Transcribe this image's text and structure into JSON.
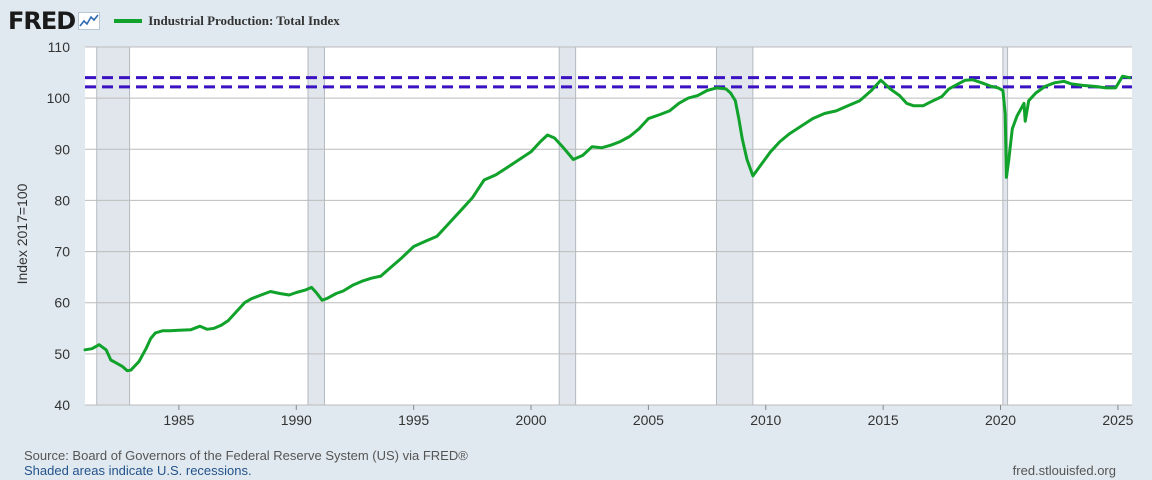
{
  "header": {
    "logo_text": "FRED",
    "logo_icon": "chart-line-icon",
    "series_title": "Industrial Production: Total Index",
    "series_color": "#10a22a"
  },
  "footer": {
    "source": "Source: Board of Governors of the Federal Reserve System (US) via FRED®",
    "recession_note": "Shaded areas indicate U.S. recessions.",
    "url": "fred.stlouisfed.org"
  },
  "colors": {
    "background": "#e1e9f0",
    "plot_area": "#ffffff",
    "recession_shade": "#e1e6ec",
    "reference_line": "#3b12c2",
    "grid": "#bcbcbc"
  },
  "chart_data": {
    "type": "line",
    "ylabel": "Index 2017=100",
    "xlim": [
      1981.0,
      2025.6
    ],
    "ylim": [
      40,
      110
    ],
    "x_ticks": [
      1985,
      1990,
      1995,
      2000,
      2005,
      2010,
      2015,
      2020,
      2025
    ],
    "y_ticks": [
      40,
      50,
      60,
      70,
      80,
      90,
      100,
      110
    ],
    "grid": "horizontal",
    "recessions": [
      [
        1981.5,
        1982.9
      ],
      [
        1990.5,
        1991.2
      ],
      [
        2001.2,
        2001.9
      ],
      [
        2007.9,
        2009.45
      ],
      [
        2020.1,
        2020.3
      ]
    ],
    "reference_lines": [
      104.0,
      102.2
    ],
    "series": [
      {
        "name": "Industrial Production: Total Index",
        "x": [
          1981.0,
          1981.3,
          1981.6,
          1981.9,
          1982.1,
          1982.3,
          1982.6,
          1982.8,
          1982.95,
          1983.3,
          1983.6,
          1983.8,
          1984.0,
          1984.3,
          1984.6,
          1985.0,
          1985.5,
          1985.9,
          1986.2,
          1986.5,
          1986.8,
          1987.1,
          1987.5,
          1987.8,
          1988.1,
          1988.5,
          1988.9,
          1989.3,
          1989.7,
          1990.0,
          1990.4,
          1990.65,
          1990.85,
          1991.1,
          1991.3,
          1991.7,
          1992.0,
          1992.4,
          1992.8,
          1993.2,
          1993.6,
          1994.0,
          1994.5,
          1995.0,
          1995.5,
          1996.0,
          1996.5,
          1997.0,
          1997.5,
          1998.0,
          1998.5,
          1999.0,
          1999.5,
          2000.0,
          2000.4,
          2000.7,
          2001.0,
          2001.4,
          2001.8,
          2002.2,
          2002.6,
          2003.0,
          2003.4,
          2003.8,
          2004.2,
          2004.6,
          2005.0,
          2005.5,
          2005.9,
          2006.3,
          2006.7,
          2007.1,
          2007.5,
          2007.9,
          2008.3,
          2008.5,
          2008.7,
          2008.85,
          2009.0,
          2009.2,
          2009.45,
          2009.8,
          2010.2,
          2010.6,
          2011.0,
          2011.5,
          2012.0,
          2012.5,
          2013.0,
          2013.5,
          2014.0,
          2014.5,
          2014.9,
          2015.3,
          2015.7,
          2016.0,
          2016.3,
          2016.7,
          2017.0,
          2017.5,
          2017.8,
          2018.2,
          2018.5,
          2018.8,
          2019.2,
          2019.6,
          2019.9,
          2020.1,
          2020.2,
          2020.25,
          2020.35,
          2020.5,
          2020.7,
          2021.0,
          2021.05,
          2021.2,
          2021.5,
          2021.9,
          2022.3,
          2022.7,
          2023.0,
          2023.5,
          2024.0,
          2024.5,
          2024.9,
          2025.2,
          2025.5
        ],
        "values": [
          50.8,
          51.0,
          51.8,
          50.8,
          48.8,
          48.3,
          47.5,
          46.7,
          46.8,
          48.5,
          51.0,
          53.0,
          54.1,
          54.5,
          54.5,
          54.6,
          54.7,
          55.4,
          54.8,
          55.0,
          55.6,
          56.5,
          58.5,
          60.0,
          60.8,
          61.5,
          62.2,
          61.8,
          61.5,
          62.0,
          62.5,
          63.0,
          62.0,
          60.5,
          60.8,
          61.8,
          62.3,
          63.4,
          64.2,
          64.8,
          65.2,
          66.8,
          68.8,
          71.0,
          72.0,
          73.0,
          75.5,
          78.0,
          80.5,
          84.0,
          85.0,
          86.5,
          88.0,
          89.5,
          91.5,
          92.8,
          92.2,
          90.2,
          88.0,
          88.8,
          90.5,
          90.3,
          90.8,
          91.5,
          92.5,
          94.0,
          96.0,
          96.8,
          97.5,
          99.0,
          100.0,
          100.5,
          101.5,
          102.0,
          101.8,
          101.0,
          99.5,
          96.0,
          92.0,
          88.0,
          84.8,
          87.0,
          89.5,
          91.5,
          93.0,
          94.5,
          96.0,
          97.0,
          97.5,
          98.5,
          99.5,
          101.5,
          103.5,
          101.8,
          100.5,
          99.0,
          98.5,
          98.5,
          99.2,
          100.3,
          101.8,
          102.8,
          103.5,
          103.6,
          103.0,
          102.3,
          102.0,
          101.5,
          97.0,
          84.5,
          88.0,
          94.0,
          96.5,
          99.0,
          95.5,
          99.5,
          101.0,
          102.3,
          103.0,
          103.3,
          102.8,
          102.5,
          102.3,
          102.0,
          102.0,
          104.3,
          104.0
        ]
      }
    ]
  }
}
